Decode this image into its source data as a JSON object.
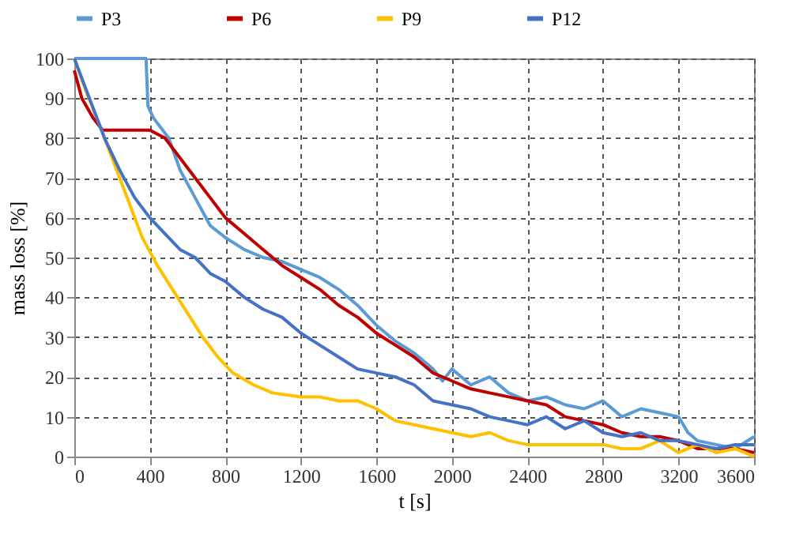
{
  "chart_data": {
    "type": "line",
    "xlabel": "t [s]",
    "ylabel": "mass loss [%]",
    "xlim": [
      0,
      3600
    ],
    "xticks": [
      0,
      400,
      800,
      1200,
      1600,
      2000,
      2400,
      2800,
      3200,
      3600
    ],
    "ylim": [
      0,
      100
    ],
    "yticks": [
      0,
      10,
      20,
      30,
      40,
      50,
      60,
      70,
      80,
      90,
      100
    ],
    "grid": true,
    "legend": "top",
    "marker": "none",
    "line_style": "solid",
    "series": [
      {
        "name": "P3",
        "color": "#5b9bd5",
        "x": [
          0,
          380,
          390,
          420,
          500,
          560,
          640,
          720,
          800,
          900,
          1000,
          1100,
          1200,
          1300,
          1400,
          1500,
          1600,
          1700,
          1800,
          1900,
          1950,
          2000,
          2100,
          2200,
          2300,
          2400,
          2500,
          2600,
          2700,
          2800,
          2900,
          3000,
          3100,
          3200,
          3250,
          3300,
          3400,
          3500,
          3600
        ],
        "values": [
          100,
          100,
          88,
          85,
          80,
          72,
          65,
          58,
          55,
          52,
          50,
          49,
          47,
          45,
          42,
          38,
          33,
          29,
          26,
          22,
          19,
          22,
          18,
          20,
          16,
          14,
          15,
          13,
          12,
          14,
          10,
          12,
          11,
          10,
          6,
          4,
          3,
          2,
          5
        ]
      },
      {
        "name": "P6",
        "color": "#c00000",
        "x": [
          0,
          40,
          100,
          150,
          400,
          480,
          560,
          640,
          720,
          800,
          900,
          1000,
          1100,
          1200,
          1300,
          1400,
          1500,
          1600,
          1700,
          1800,
          1900,
          2000,
          2100,
          2200,
          2300,
          2400,
          2500,
          2600,
          2700,
          2800,
          2900,
          3000,
          3100,
          3200,
          3300,
          3400,
          3500,
          3600
        ],
        "values": [
          97,
          90,
          85,
          82,
          82,
          80,
          75,
          70,
          65,
          60,
          56,
          52,
          48,
          45,
          42,
          38,
          35,
          31,
          28,
          25,
          21,
          19,
          17,
          16,
          15,
          14,
          13,
          10,
          9,
          8,
          6,
          5,
          5,
          4,
          2,
          2,
          2,
          1
        ]
      },
      {
        "name": "P9",
        "color": "#ffc000",
        "x": [
          0,
          60,
          120,
          200,
          280,
          360,
          440,
          520,
          600,
          680,
          760,
          840,
          950,
          1050,
          1200,
          1300,
          1400,
          1500,
          1600,
          1700,
          1800,
          1900,
          2000,
          2100,
          2200,
          2300,
          2400,
          2600,
          2800,
          2900,
          3000,
          3100,
          3200,
          3300,
          3400,
          3500,
          3600
        ],
        "values": [
          100,
          92,
          85,
          75,
          65,
          55,
          48,
          42,
          36,
          30,
          25,
          21,
          18,
          16,
          15,
          15,
          14,
          14,
          12,
          9,
          8,
          7,
          6,
          5,
          6,
          4,
          3,
          3,
          3,
          2,
          2,
          4,
          1,
          3,
          1,
          2,
          0
        ]
      },
      {
        "name": "P12",
        "color": "#4472c4",
        "x": [
          0,
          80,
          160,
          240,
          320,
          400,
          480,
          560,
          640,
          720,
          800,
          900,
          1000,
          1100,
          1200,
          1300,
          1400,
          1500,
          1600,
          1700,
          1800,
          1900,
          2000,
          2100,
          2200,
          2300,
          2400,
          2500,
          2600,
          2700,
          2800,
          2900,
          3000,
          3100,
          3200,
          3300,
          3400,
          3500,
          3600
        ],
        "values": [
          100,
          90,
          80,
          72,
          65,
          60,
          56,
          52,
          50,
          46,
          44,
          40,
          37,
          35,
          31,
          28,
          25,
          22,
          21,
          20,
          18,
          14,
          13,
          12,
          10,
          9,
          8,
          10,
          7,
          9,
          6,
          5,
          6,
          4,
          4,
          3,
          2,
          3,
          3
        ]
      }
    ]
  }
}
